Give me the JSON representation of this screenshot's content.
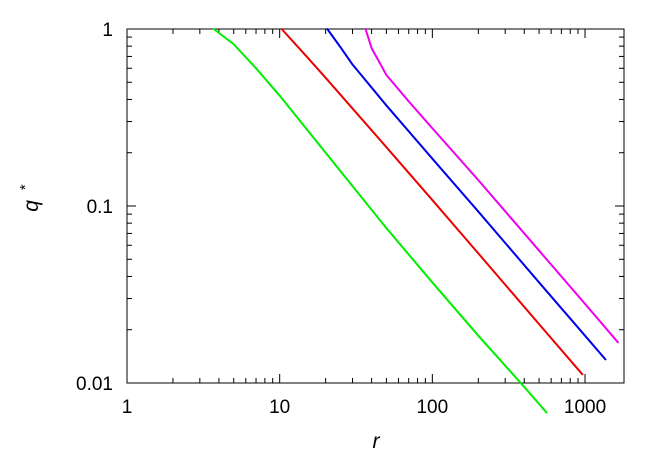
{
  "chart_data": {
    "type": "line",
    "title": "",
    "xlabel": "r",
    "ylabel": {
      "base": "q",
      "superscript": "*"
    },
    "x_scale": "log",
    "y_scale": "log",
    "xlim": [
      1,
      1800
    ],
    "ylim": [
      0.01,
      1
    ],
    "x_ticks": [
      {
        "value": 1,
        "label": "1"
      },
      {
        "value": 10,
        "label": "10"
      },
      {
        "value": 100,
        "label": "100"
      },
      {
        "value": 1000,
        "label": "1000"
      }
    ],
    "y_ticks": [
      {
        "value": 0.01,
        "label": "0.01"
      },
      {
        "value": 0.1,
        "label": "0.1"
      },
      {
        "value": 1,
        "label": "1"
      }
    ],
    "grid": false,
    "legend": "none",
    "series": [
      {
        "color": "#00ee00",
        "points": [
          [
            3.7,
            1.0
          ],
          [
            5,
            0.82
          ],
          [
            7,
            0.6
          ],
          [
            10,
            0.42
          ],
          [
            20,
            0.2
          ],
          [
            50,
            0.075
          ],
          [
            100,
            0.037
          ],
          [
            200,
            0.0185
          ],
          [
            400,
            0.0095
          ],
          [
            560,
            0.0068
          ]
        ]
      },
      {
        "color": "#ee0000",
        "points": [
          [
            10.3,
            1.0
          ],
          [
            15,
            0.7
          ],
          [
            20,
            0.53
          ],
          [
            50,
            0.215
          ],
          [
            100,
            0.108
          ],
          [
            200,
            0.054
          ],
          [
            500,
            0.0215
          ],
          [
            960,
            0.0112
          ]
        ]
      },
      {
        "color": "#0000ee",
        "points": [
          [
            20.5,
            1.0
          ],
          [
            25,
            0.79
          ],
          [
            30,
            0.63
          ],
          [
            50,
            0.37
          ],
          [
            100,
            0.185
          ],
          [
            200,
            0.093
          ],
          [
            500,
            0.037
          ],
          [
            1000,
            0.0185
          ],
          [
            1360,
            0.0136
          ]
        ]
      },
      {
        "color": "#ee00ee",
        "points": [
          [
            36.5,
            1.0
          ],
          [
            40,
            0.78
          ],
          [
            50,
            0.55
          ],
          [
            70,
            0.39
          ],
          [
            100,
            0.275
          ],
          [
            200,
            0.14
          ],
          [
            500,
            0.056
          ],
          [
            1000,
            0.028
          ],
          [
            1640,
            0.017
          ]
        ]
      }
    ]
  }
}
